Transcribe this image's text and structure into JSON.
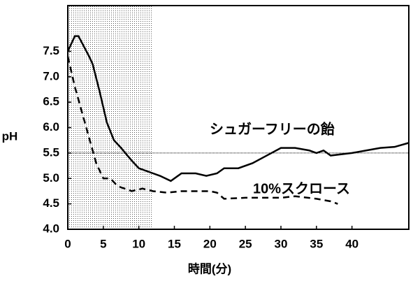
{
  "chart_data": {
    "type": "line",
    "xlabel": "時間(分)",
    "ylabel": "pH",
    "xlim": [
      0,
      48
    ],
    "ylim": [
      4,
      8.4
    ],
    "xticks": [
      0,
      5,
      10,
      15,
      20,
      25,
      30,
      35,
      40
    ],
    "yticks": [
      {
        "value": 4,
        "label": "4.0"
      },
      4.5,
      {
        "value": 5,
        "label": "5.0"
      },
      5.5,
      {
        "value": 6,
        "label": "6.0"
      },
      6.5,
      {
        "value": 7,
        "label": "7.0"
      },
      7.5
    ],
    "shaded_x": [
      0,
      12
    ],
    "hline": 5.5,
    "series": [
      {
        "name": "シュガーフリーの飴",
        "color": "#000000",
        "dash": false,
        "x": [
          0,
          1,
          1.5,
          3,
          3.5,
          4.5,
          5.5,
          6.5,
          7.5,
          9,
          10,
          12,
          13,
          14.5,
          16,
          18,
          19.5,
          21,
          22,
          24,
          26,
          28,
          30,
          32,
          34,
          35,
          36,
          37,
          40,
          42,
          44,
          46,
          48
        ],
        "values": [
          7.5,
          7.8,
          7.8,
          7.4,
          7.25,
          6.7,
          6.1,
          5.75,
          5.6,
          5.35,
          5.2,
          5.1,
          5.05,
          4.95,
          5.1,
          5.1,
          5.05,
          5.1,
          5.2,
          5.2,
          5.3,
          5.45,
          5.6,
          5.6,
          5.55,
          5.5,
          5.55,
          5.45,
          5.5,
          5.55,
          5.6,
          5.62,
          5.7
        ]
      },
      {
        "name": "10%スクロース",
        "color": "#000000",
        "dash": true,
        "x": [
          0,
          1,
          2,
          3,
          4,
          5,
          6,
          7,
          9,
          10.5,
          12,
          14,
          16,
          20,
          21,
          22,
          25,
          30,
          32,
          35,
          37,
          38
        ],
        "values": [
          7.4,
          6.8,
          6.3,
          5.8,
          5.3,
          5.0,
          5.0,
          4.85,
          4.75,
          4.8,
          4.75,
          4.72,
          4.75,
          4.75,
          4.72,
          4.6,
          4.62,
          4.62,
          4.65,
          4.6,
          4.55,
          4.5
        ]
      }
    ]
  }
}
